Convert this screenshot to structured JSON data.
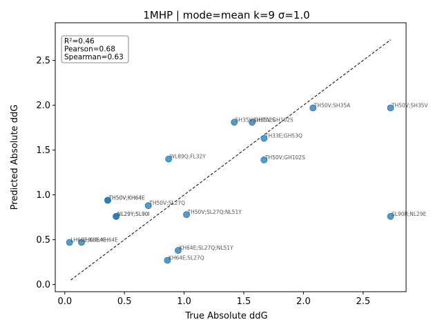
{
  "chart_data": {
    "type": "scatter",
    "title": "1MHP | mode=mean k=9 σ=1.0",
    "xlabel": "True Absolute ddG",
    "ylabel": "Predicted Absolute ddG",
    "xlim": [
      -0.08,
      2.86
    ],
    "ylim": [
      -0.08,
      2.92
    ],
    "x_ticks": [
      0.0,
      0.5,
      1.0,
      1.5,
      2.0,
      2.5
    ],
    "y_ticks": [
      0.0,
      0.5,
      1.0,
      1.5,
      2.0,
      2.5
    ],
    "x_tick_labels": [
      "0.0",
      "0.5",
      "1.0",
      "1.5",
      "2.0",
      "2.5"
    ],
    "y_tick_labels": [
      "0.0",
      "0.5",
      "1.0",
      "1.5",
      "2.0",
      "2.5"
    ],
    "grid": false,
    "point_color": "#1f77b4",
    "diagonal": {
      "from": [
        0.05,
        0.05
      ],
      "to": [
        2.73,
        2.73
      ],
      "style": "dashed",
      "color": "#000000"
    },
    "stats_box": {
      "lines": [
        "R²=0.46",
        "Pearson=0.68",
        "Spearman=0.63"
      ],
      "placement": "top-left"
    },
    "points": [
      {
        "x": 0.04,
        "y": 0.47,
        "label": "LH60E;KH64E"
      },
      {
        "x": 0.14,
        "y": 0.47,
        "label": "LH60E;KH64E"
      },
      {
        "x": 0.36,
        "y": 0.94,
        "label": "TH50V;KH64E"
      },
      {
        "x": 0.36,
        "y": 0.94,
        "label": "TH50V;KH64E"
      },
      {
        "x": 0.43,
        "y": 0.76,
        "label": "NL29Y;SL90I"
      },
      {
        "x": 0.43,
        "y": 0.76,
        "label": "NL29Y;SL90I"
      },
      {
        "x": 0.7,
        "y": 0.88,
        "label": "TH50V;SL27Q"
      },
      {
        "x": 0.86,
        "y": 0.27,
        "label": "KH64E;SL27Q"
      },
      {
        "x": 0.87,
        "y": 1.4,
        "label": "WL89Q;FL32Y"
      },
      {
        "x": 0.95,
        "y": 0.38,
        "label": "KH64E;SL27Q;NL51Y"
      },
      {
        "x": 1.02,
        "y": 0.78,
        "label": "TH50V;SL27Q;NL51Y"
      },
      {
        "x": 1.42,
        "y": 1.81,
        "label": "SH35V;GH102S"
      },
      {
        "x": 1.57,
        "y": 1.81,
        "label": "SH35V;GH102S"
      },
      {
        "x": 1.67,
        "y": 1.63,
        "label": "TH33E;GH53Q"
      },
      {
        "x": 1.67,
        "y": 1.39,
        "label": "TH50V;GH102S"
      },
      {
        "x": 2.08,
        "y": 1.97,
        "label": "TH50V;SH35A"
      },
      {
        "x": 2.73,
        "y": 1.97,
        "label": "TH50V;SH35V"
      },
      {
        "x": 2.73,
        "y": 0.76,
        "label": "SL90R;NL29E"
      }
    ]
  }
}
